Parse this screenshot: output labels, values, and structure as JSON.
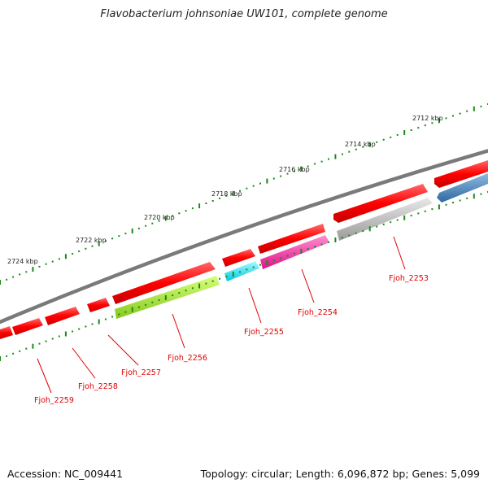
{
  "title": "Flavobacterium johnsoniae UW101, complete genome",
  "footer": {
    "accession": "Accession: NC_009441",
    "summary": "Topology: circular; Length: 6,096,872 bp; Genes: 5,099"
  },
  "kbp_labels": [
    "2712 kbp",
    "2714 kbp",
    "2716 kbp",
    "2718 kbp",
    "2720 kbp",
    "2722 kbp",
    "2724 kbp"
  ],
  "gene_labels": [
    "Fjoh_2253",
    "Fjoh_2254",
    "Fjoh_2255",
    "Fjoh_2256",
    "Fjoh_2257",
    "Fjoh_2258",
    "Fjoh_2259"
  ],
  "colors": {
    "backbone": "#808080",
    "gene_red": "#ff0000",
    "gene_grey": "#bdbdbd",
    "gene_magenta": "#ff1493",
    "gene_cyan": "#00e5ff",
    "gene_green": "#a6e22e",
    "gene_blue": "#4682b4",
    "tick_green": "#1a8a1a",
    "label_red": "#e00000"
  }
}
